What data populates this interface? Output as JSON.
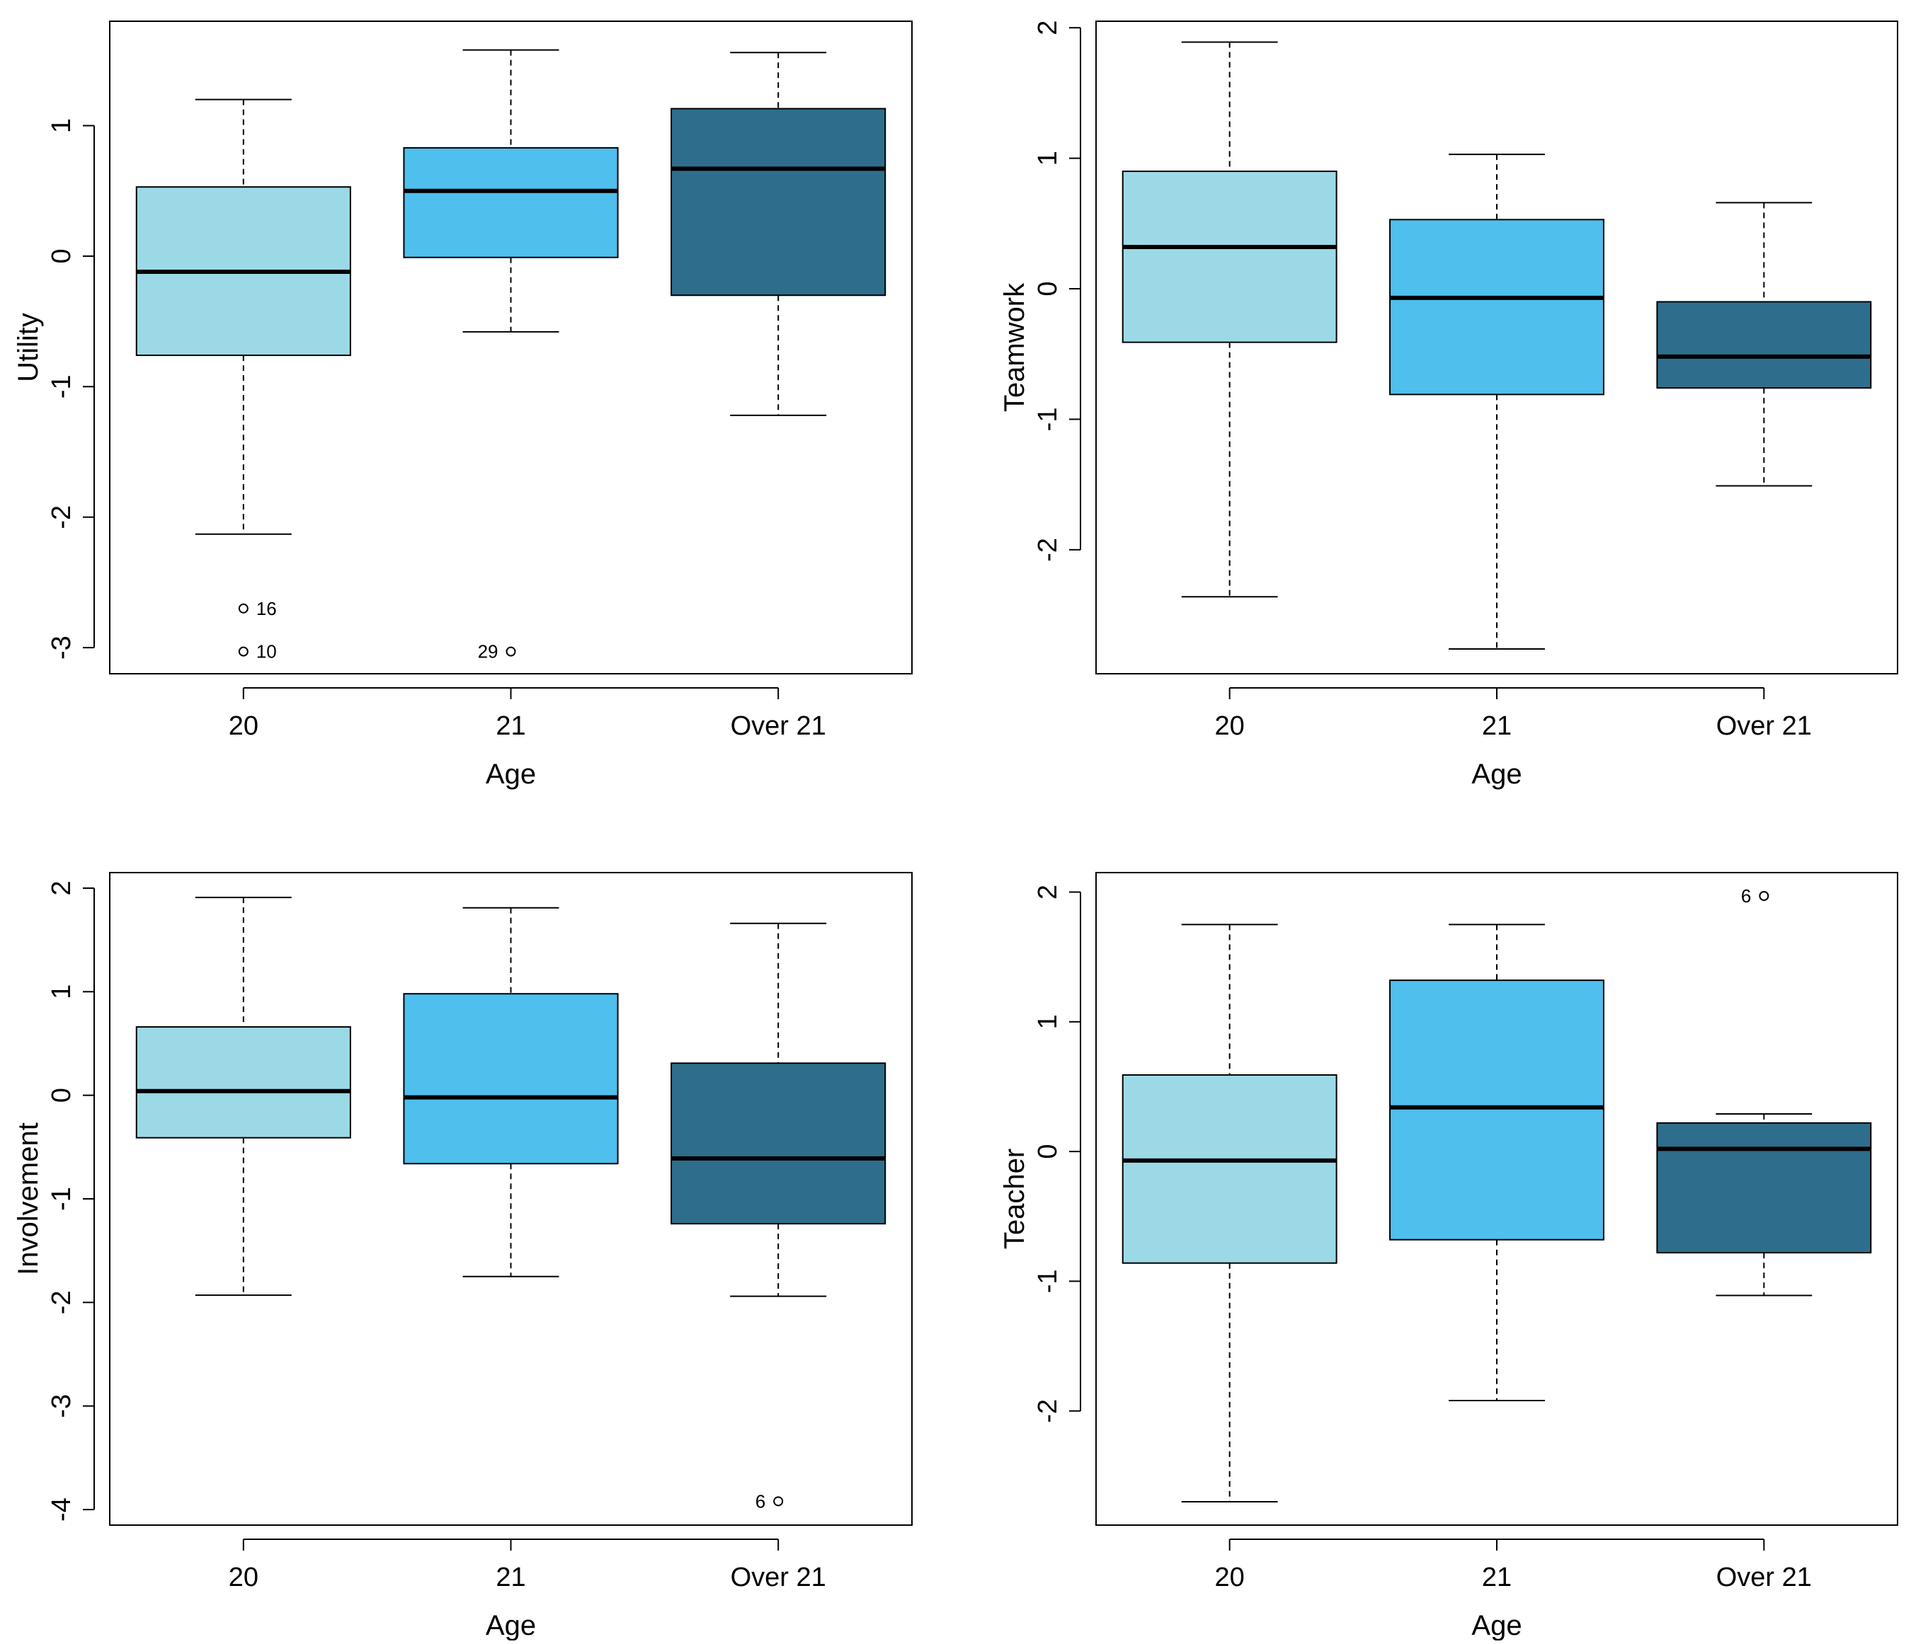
{
  "chart_data": [
    {
      "type": "box",
      "xlabel": "Age",
      "ylabel": "Utility",
      "categories": [
        "20",
        "21",
        "Over 21"
      ],
      "colors": [
        "#9CD9E6",
        "#4FBFEE",
        "#2E6E8C"
      ],
      "yticks": [
        -3,
        -2,
        -1,
        0,
        1
      ],
      "ytick_labels": [
        "-3",
        "-2",
        "-1",
        "0",
        "1"
      ],
      "ylim": [
        -3.2,
        1.8
      ],
      "boxes": [
        {
          "whisker_low": -2.13,
          "q1": -0.76,
          "median": -0.12,
          "q3": 0.53,
          "whisker_high": 1.2
        },
        {
          "whisker_low": -0.58,
          "q1": -0.01,
          "median": 0.5,
          "q3": 0.83,
          "whisker_high": 1.58
        },
        {
          "whisker_low": -1.22,
          "q1": -0.3,
          "median": 0.67,
          "q3": 1.13,
          "whisker_high": 1.56
        }
      ],
      "outliers": [
        {
          "category": 0,
          "value": -2.7,
          "label": "16",
          "label_side": "right"
        },
        {
          "category": 0,
          "value": -3.03,
          "label": "10",
          "label_side": "right"
        },
        {
          "category": 1,
          "value": -3.03,
          "label": "29",
          "label_side": "left"
        }
      ]
    },
    {
      "type": "box",
      "xlabel": "Age",
      "ylabel": "Teamwork",
      "categories": [
        "20",
        "21",
        "Over 21"
      ],
      "colors": [
        "#9CD9E6",
        "#4FBFEE",
        "#2E6E8C"
      ],
      "yticks": [
        -2,
        -1,
        0,
        1,
        2
      ],
      "ytick_labels": [
        "-2",
        "-1",
        "0",
        "1",
        "2"
      ],
      "ylim": [
        -2.95,
        2.05
      ],
      "boxes": [
        {
          "whisker_low": -2.36,
          "q1": -0.41,
          "median": 0.32,
          "q3": 0.9,
          "whisker_high": 1.89
        },
        {
          "whisker_low": -2.76,
          "q1": -0.81,
          "median": -0.07,
          "q3": 0.53,
          "whisker_high": 1.03
        },
        {
          "whisker_low": -1.51,
          "q1": -0.76,
          "median": -0.52,
          "q3": -0.1,
          "whisker_high": 0.66
        }
      ],
      "outliers": []
    },
    {
      "type": "box",
      "xlabel": "Age",
      "ylabel": "Involvement",
      "categories": [
        "20",
        "21",
        "Over 21"
      ],
      "colors": [
        "#9CD9E6",
        "#4FBFEE",
        "#2E6E8C"
      ],
      "yticks": [
        -4,
        -3,
        -2,
        -1,
        0,
        1,
        2
      ],
      "ytick_labels": [
        "-4",
        "-3",
        "-2",
        "-1",
        "0",
        "1",
        "2"
      ],
      "ylim": [
        -4.15,
        2.15
      ],
      "boxes": [
        {
          "whisker_low": -1.93,
          "q1": -0.41,
          "median": 0.04,
          "q3": 0.66,
          "whisker_high": 1.91
        },
        {
          "whisker_low": -1.75,
          "q1": -0.66,
          "median": -0.02,
          "q3": 0.98,
          "whisker_high": 1.81
        },
        {
          "whisker_low": -1.94,
          "q1": -1.24,
          "median": -0.61,
          "q3": 0.31,
          "whisker_high": 1.66
        }
      ],
      "outliers": [
        {
          "category": 2,
          "value": -3.92,
          "label": "6",
          "label_side": "left"
        }
      ]
    },
    {
      "type": "box",
      "xlabel": "Age",
      "ylabel": "Teacher",
      "categories": [
        "20",
        "21",
        "Over 21"
      ],
      "colors": [
        "#9CD9E6",
        "#4FBFEE",
        "#2E6E8C"
      ],
      "yticks": [
        -2,
        -1,
        0,
        1,
        2
      ],
      "ytick_labels": [
        "-2",
        "-1",
        "0",
        "1",
        "2"
      ],
      "ylim": [
        -2.88,
        2.15
      ],
      "boxes": [
        {
          "whisker_low": -2.7,
          "q1": -0.86,
          "median": -0.07,
          "q3": 0.59,
          "whisker_high": 1.75
        },
        {
          "whisker_low": -1.92,
          "q1": -0.68,
          "median": 0.34,
          "q3": 1.32,
          "whisker_high": 1.75
        },
        {
          "whisker_low": -1.11,
          "q1": -0.78,
          "median": 0.02,
          "q3": 0.22,
          "whisker_high": 0.29
        }
      ],
      "outliers": [
        {
          "category": 2,
          "value": 1.97,
          "label": "6",
          "label_side": "left"
        }
      ]
    }
  ]
}
